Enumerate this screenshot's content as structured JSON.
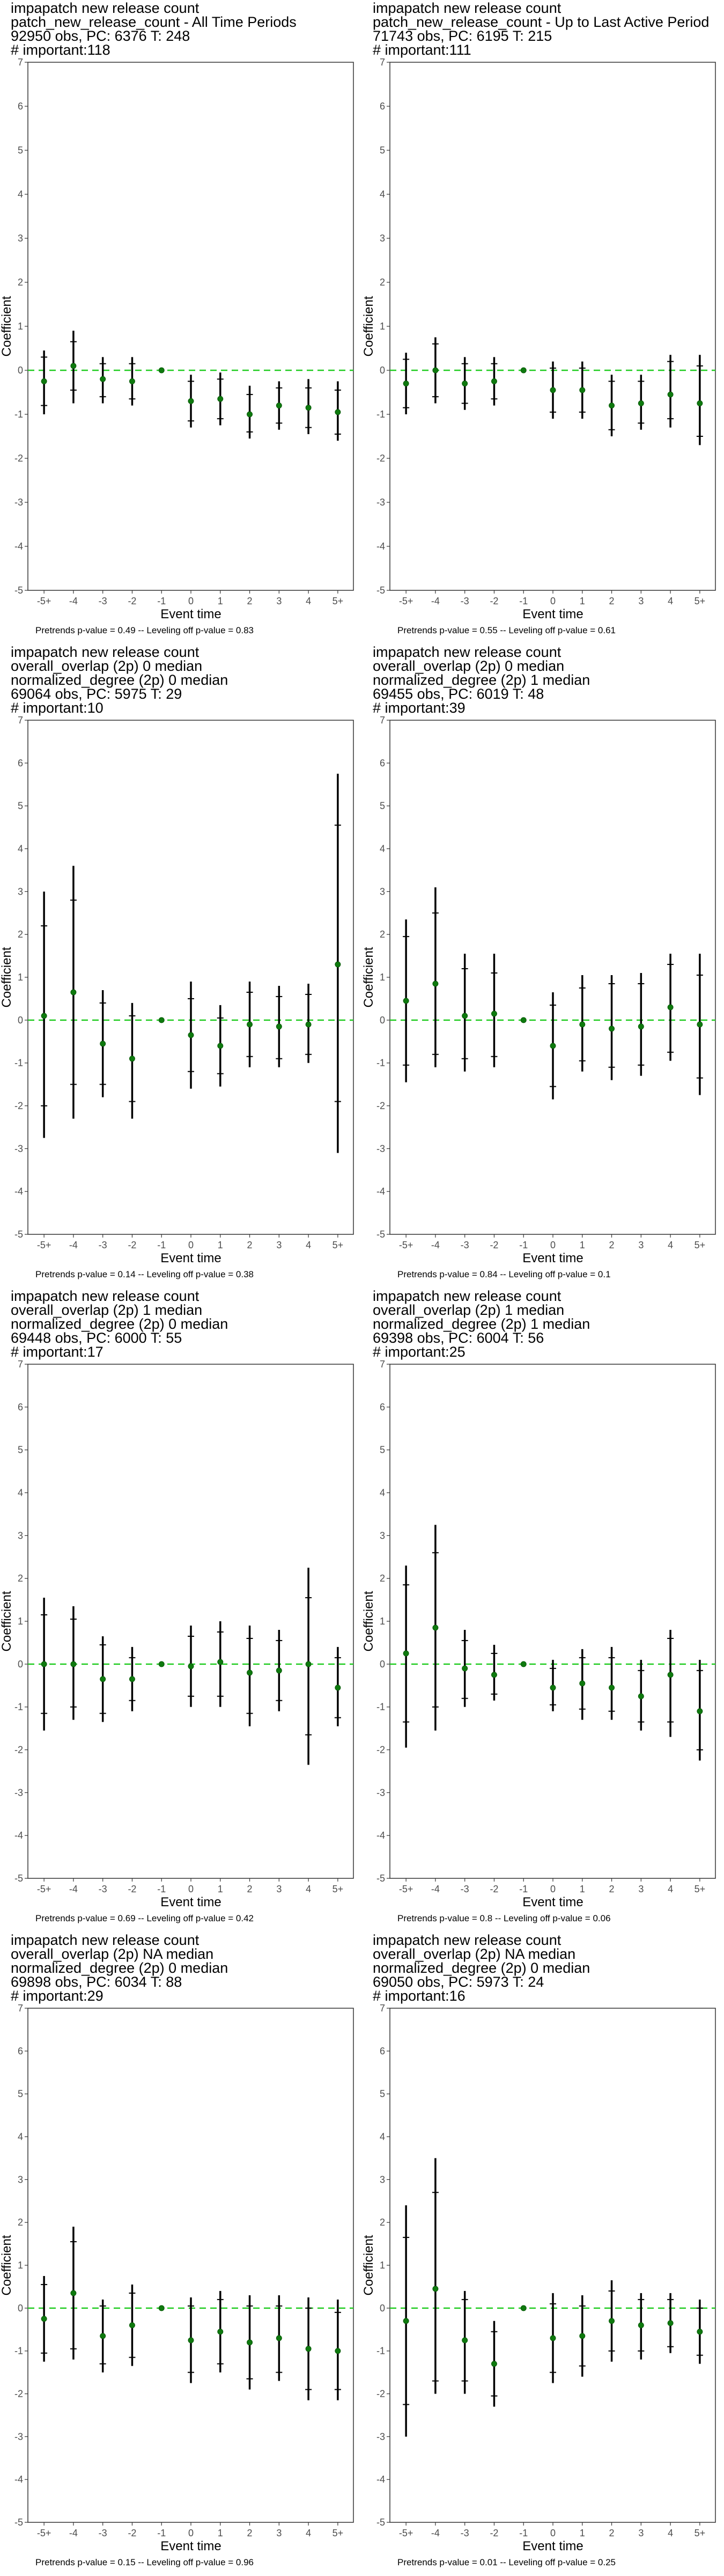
{
  "chart_data": [
    {
      "type": "scatter",
      "title_lines": [
        "impapatch new release count",
        "patch_new_release_count - All Time Periods",
        "92950 obs, PC: 6376 T: 248",
        "# important:118"
      ],
      "xlabel": "Event time",
      "ylabel": "Coefficient",
      "footer": "Pretrends p-value = 0.49 -- Leveling off p-value = 0.83",
      "categories": [
        "-5+",
        "-4",
        "-3",
        "-2",
        "-1",
        "0",
        "1",
        "2",
        "3",
        "4",
        "5+"
      ],
      "ylim": [
        -5,
        7
      ],
      "yticks": [
        -5,
        -4,
        -3,
        -2,
        -1,
        0,
        1,
        2,
        3,
        4,
        5,
        6,
        7
      ],
      "values": [
        -0.25,
        0.1,
        -0.2,
        -0.25,
        0,
        -0.7,
        -0.65,
        -1.0,
        -0.8,
        -0.85,
        -0.95
      ],
      "ci_low": [
        -1.0,
        -0.75,
        -0.75,
        -0.8,
        0,
        -1.3,
        -1.25,
        -1.55,
        -1.35,
        -1.45,
        -1.6
      ],
      "ci_high": [
        0.45,
        0.9,
        0.3,
        0.3,
        0,
        -0.1,
        -0.05,
        -0.35,
        -0.25,
        -0.2,
        -0.25
      ],
      "ci90_low": [
        -0.8,
        -0.45,
        -0.6,
        -0.65,
        0,
        -1.15,
        -1.1,
        -1.4,
        -1.2,
        -1.3,
        -1.45
      ],
      "ci90_high": [
        0.3,
        0.65,
        0.15,
        0.15,
        0,
        -0.25,
        -0.2,
        -0.55,
        -0.4,
        -0.4,
        -0.45
      ]
    },
    {
      "type": "scatter",
      "title_lines": [
        "impapatch new release count",
        "patch_new_release_count - Up to Last Active Period",
        "71743 obs, PC: 6195 T: 215",
        "# important:111"
      ],
      "xlabel": "Event time",
      "ylabel": "Coefficient",
      "footer": "Pretrends p-value = 0.55 -- Leveling off p-value = 0.61",
      "categories": [
        "-5+",
        "-4",
        "-3",
        "-2",
        "-1",
        "0",
        "1",
        "2",
        "3",
        "4",
        "5+"
      ],
      "ylim": [
        -5,
        7
      ],
      "yticks": [
        -5,
        -4,
        -3,
        -2,
        -1,
        0,
        1,
        2,
        3,
        4,
        5,
        6,
        7
      ],
      "values": [
        -0.3,
        0.0,
        -0.3,
        -0.25,
        0,
        -0.45,
        -0.45,
        -0.8,
        -0.75,
        -0.55,
        -0.75
      ],
      "ci_low": [
        -1.0,
        -0.75,
        -0.9,
        -0.8,
        0,
        -1.1,
        -1.1,
        -1.5,
        -1.35,
        -1.3,
        -1.7
      ],
      "ci_high": [
        0.4,
        0.75,
        0.3,
        0.3,
        0,
        0.2,
        0.2,
        -0.1,
        -0.1,
        0.35,
        0.35
      ],
      "ci90_low": [
        -0.85,
        -0.6,
        -0.75,
        -0.65,
        0,
        -0.95,
        -0.95,
        -1.35,
        -1.2,
        -1.1,
        -1.5
      ],
      "ci90_high": [
        0.25,
        0.6,
        0.15,
        0.15,
        0,
        0.05,
        0.05,
        -0.25,
        -0.25,
        0.2,
        0.1
      ]
    },
    {
      "type": "scatter",
      "title_lines": [
        "impapatch new release count",
        "overall_overlap (2p) 0 median",
        "normalized_degree (2p) 0 median",
        "69064 obs, PC: 5975 T: 29",
        "# important:10"
      ],
      "xlabel": "Event time",
      "ylabel": "Coefficient",
      "footer": "Pretrends p-value = 0.14 -- Leveling off p-value = 0.38",
      "categories": [
        "-5+",
        "-4",
        "-3",
        "-2",
        "-1",
        "0",
        "1",
        "2",
        "3",
        "4",
        "5+"
      ],
      "ylim": [
        -5,
        7
      ],
      "yticks": [
        -5,
        -4,
        -3,
        -2,
        -1,
        0,
        1,
        2,
        3,
        4,
        5,
        6,
        7
      ],
      "values": [
        0.1,
        0.65,
        -0.55,
        -0.9,
        0,
        -0.35,
        -0.6,
        -0.1,
        -0.15,
        -0.1,
        1.3
      ],
      "ci_low": [
        -2.75,
        -2.3,
        -1.8,
        -2.3,
        0,
        -1.6,
        -1.55,
        -1.1,
        -1.1,
        -1.0,
        -3.1
      ],
      "ci_high": [
        3.0,
        3.6,
        0.7,
        0.4,
        0,
        0.9,
        0.35,
        0.9,
        0.8,
        0.85,
        5.75
      ],
      "ci90_low": [
        -2.0,
        -1.5,
        -1.5,
        -1.9,
        0,
        -1.2,
        -1.25,
        -0.85,
        -0.9,
        -0.8,
        -1.9
      ],
      "ci90_high": [
        2.2,
        2.8,
        0.4,
        0.1,
        0,
        0.5,
        0.05,
        0.65,
        0.55,
        0.6,
        4.55
      ]
    },
    {
      "type": "scatter",
      "title_lines": [
        "impapatch new release count",
        "overall_overlap (2p) 0 median",
        "normalized_degree (2p) 1 median",
        "69455 obs, PC: 6019 T: 48",
        "# important:39"
      ],
      "xlabel": "Event time",
      "ylabel": "Coefficient",
      "footer": "Pretrends p-value = 0.84 -- Leveling off p-value = 0.1",
      "categories": [
        "-5+",
        "-4",
        "-3",
        "-2",
        "-1",
        "0",
        "1",
        "2",
        "3",
        "4",
        "5+"
      ],
      "ylim": [
        -5,
        7
      ],
      "yticks": [
        -5,
        -4,
        -3,
        -2,
        -1,
        0,
        1,
        2,
        3,
        4,
        5,
        6,
        7
      ],
      "values": [
        0.45,
        0.85,
        0.1,
        0.15,
        0,
        -0.6,
        -0.1,
        -0.2,
        -0.15,
        0.3,
        -0.1
      ],
      "ci_low": [
        -1.45,
        -1.1,
        -1.2,
        -1.1,
        0,
        -1.85,
        -1.2,
        -1.4,
        -1.3,
        -0.95,
        -1.75
      ],
      "ci_high": [
        2.35,
        3.1,
        1.55,
        1.55,
        0,
        0.65,
        1.05,
        1.05,
        1.1,
        1.55,
        1.55
      ],
      "ci90_low": [
        -1.05,
        -0.8,
        -0.9,
        -0.85,
        0,
        -1.55,
        -0.95,
        -1.1,
        -1.05,
        -0.75,
        -1.35
      ],
      "ci90_high": [
        1.95,
        2.5,
        1.2,
        1.1,
        0,
        0.35,
        0.75,
        0.85,
        0.85,
        1.3,
        1.05
      ]
    },
    {
      "type": "scatter",
      "title_lines": [
        "impapatch new release count",
        "overall_overlap (2p) 1 median",
        "normalized_degree (2p) 0 median",
        "69448 obs, PC: 6000 T: 55",
        "# important:17"
      ],
      "xlabel": "Event time",
      "ylabel": "Coefficient",
      "footer": "Pretrends p-value = 0.69 -- Leveling off p-value = 0.42",
      "categories": [
        "-5+",
        "-4",
        "-3",
        "-2",
        "-1",
        "0",
        "1",
        "2",
        "3",
        "4",
        "5+"
      ],
      "ylim": [
        -5,
        7
      ],
      "yticks": [
        -5,
        -4,
        -3,
        -2,
        -1,
        0,
        1,
        2,
        3,
        4,
        5,
        6,
        7
      ],
      "values": [
        0.0,
        0.0,
        -0.35,
        -0.35,
        0,
        -0.05,
        0.05,
        -0.2,
        -0.15,
        0.0,
        -0.55
      ],
      "ci_low": [
        -1.55,
        -1.3,
        -1.35,
        -1.1,
        0,
        -1.0,
        -1.0,
        -1.45,
        -1.1,
        -2.35,
        -1.45
      ],
      "ci_high": [
        1.55,
        1.35,
        0.65,
        0.4,
        0,
        0.9,
        1.0,
        0.9,
        0.8,
        2.25,
        0.4
      ],
      "ci90_low": [
        -1.15,
        -1.0,
        -1.15,
        -0.85,
        0,
        -0.75,
        -0.75,
        -1.15,
        -0.85,
        -1.65,
        -1.25
      ],
      "ci90_high": [
        1.15,
        1.05,
        0.45,
        0.15,
        0,
        0.65,
        0.75,
        0.6,
        0.55,
        1.55,
        0.15
      ]
    },
    {
      "type": "scatter",
      "title_lines": [
        "impapatch new release count",
        "overall_overlap (2p) 1 median",
        "normalized_degree (2p) 1 median",
        "69398 obs, PC: 6004 T: 56",
        "# important:25"
      ],
      "xlabel": "Event time",
      "ylabel": "Coefficient",
      "footer": "Pretrends p-value = 0.8 -- Leveling off p-value = 0.06",
      "categories": [
        "-5+",
        "-4",
        "-3",
        "-2",
        "-1",
        "0",
        "1",
        "2",
        "3",
        "4",
        "5+"
      ],
      "ylim": [
        -5,
        7
      ],
      "yticks": [
        -5,
        -4,
        -3,
        -2,
        -1,
        0,
        1,
        2,
        3,
        4,
        5,
        6,
        7
      ],
      "values": [
        0.25,
        0.85,
        -0.1,
        -0.25,
        0,
        -0.55,
        -0.45,
        -0.55,
        -0.75,
        -0.25,
        -1.1
      ],
      "ci_low": [
        -1.95,
        -1.55,
        -1.0,
        -0.85,
        0,
        -1.1,
        -1.3,
        -1.3,
        -1.55,
        -1.7,
        -2.25
      ],
      "ci_high": [
        2.3,
        3.25,
        0.8,
        0.45,
        0,
        0.1,
        0.35,
        0.4,
        0.1,
        0.8,
        0.1
      ],
      "ci90_low": [
        -1.35,
        -1.0,
        -0.8,
        -0.7,
        0,
        -0.95,
        -1.05,
        -1.1,
        -1.35,
        -1.35,
        -2.0
      ],
      "ci90_high": [
        1.85,
        2.6,
        0.55,
        0.25,
        0,
        -0.1,
        0.15,
        0.15,
        -0.15,
        0.6,
        -0.15
      ]
    },
    {
      "type": "scatter",
      "title_lines": [
        "impapatch new release count",
        "overall_overlap (2p) NA median",
        "normalized_degree (2p) 0 median",
        "69898 obs, PC: 6034 T: 88",
        "# important:29"
      ],
      "xlabel": "Event time",
      "ylabel": "Coefficient",
      "footer": "Pretrends p-value = 0.15 -- Leveling off p-value = 0.96",
      "categories": [
        "-5+",
        "-4",
        "-3",
        "-2",
        "-1",
        "0",
        "1",
        "2",
        "3",
        "4",
        "5+"
      ],
      "ylim": [
        -5,
        7
      ],
      "yticks": [
        -5,
        -4,
        -3,
        -2,
        -1,
        0,
        1,
        2,
        3,
        4,
        5,
        6,
        7
      ],
      "values": [
        -0.25,
        0.35,
        -0.65,
        -0.4,
        0,
        -0.75,
        -0.55,
        -0.8,
        -0.7,
        -0.95,
        -1.0
      ],
      "ci_low": [
        -1.25,
        -1.2,
        -1.5,
        -1.35,
        0,
        -1.75,
        -1.5,
        -1.9,
        -1.7,
        -2.15,
        -2.15
      ],
      "ci_high": [
        0.75,
        1.9,
        0.2,
        0.55,
        0,
        0.25,
        0.4,
        0.3,
        0.3,
        0.25,
        0.2
      ],
      "ci90_low": [
        -1.05,
        -0.95,
        -1.3,
        -1.15,
        0,
        -1.5,
        -1.3,
        -1.65,
        -1.5,
        -1.9,
        -1.9
      ],
      "ci90_high": [
        0.55,
        1.55,
        0.05,
        0.35,
        0,
        0.05,
        0.2,
        0.05,
        0.05,
        0.0,
        -0.1
      ]
    },
    {
      "type": "scatter",
      "title_lines": [
        "impapatch new release count",
        "overall_overlap (2p) NA median",
        "normalized_degree (2p) 0 median",
        "69050 obs, PC: 5973 T: 24",
        "# important:16"
      ],
      "xlabel": "Event time",
      "ylabel": "Coefficient",
      "footer": "Pretrends p-value = 0.01 -- Leveling off p-value = 0.25",
      "categories": [
        "-5+",
        "-4",
        "-3",
        "-2",
        "-1",
        "0",
        "1",
        "2",
        "3",
        "4",
        "5+"
      ],
      "ylim": [
        -5,
        7
      ],
      "yticks": [
        -5,
        -4,
        -3,
        -2,
        -1,
        0,
        1,
        2,
        3,
        4,
        5,
        6,
        7
      ],
      "values": [
        -0.3,
        0.45,
        -0.75,
        -1.3,
        0,
        -0.7,
        -0.65,
        -0.3,
        -0.4,
        -0.35,
        -0.55
      ],
      "ci_low": [
        -3.0,
        -2.0,
        -2.0,
        -2.3,
        0,
        -1.75,
        -1.6,
        -1.25,
        -1.2,
        -1.05,
        -1.3
      ],
      "ci_high": [
        2.4,
        3.5,
        0.4,
        -0.3,
        0,
        0.35,
        0.3,
        0.65,
        0.35,
        0.35,
        0.2
      ],
      "ci90_low": [
        -2.25,
        -1.7,
        -1.7,
        -2.05,
        0,
        -1.5,
        -1.35,
        -1.0,
        -1.0,
        -0.9,
        -1.1
      ],
      "ci90_high": [
        1.65,
        2.7,
        0.2,
        -0.55,
        0,
        0.1,
        0.05,
        0.4,
        0.2,
        0.2,
        0.0
      ]
    }
  ],
  "colors": {
    "point": "#0e7a0e",
    "error_bar": "#000000",
    "zero_line": "#22cc22",
    "frame": "#333333",
    "tick_label": "#4d4d4d"
  }
}
